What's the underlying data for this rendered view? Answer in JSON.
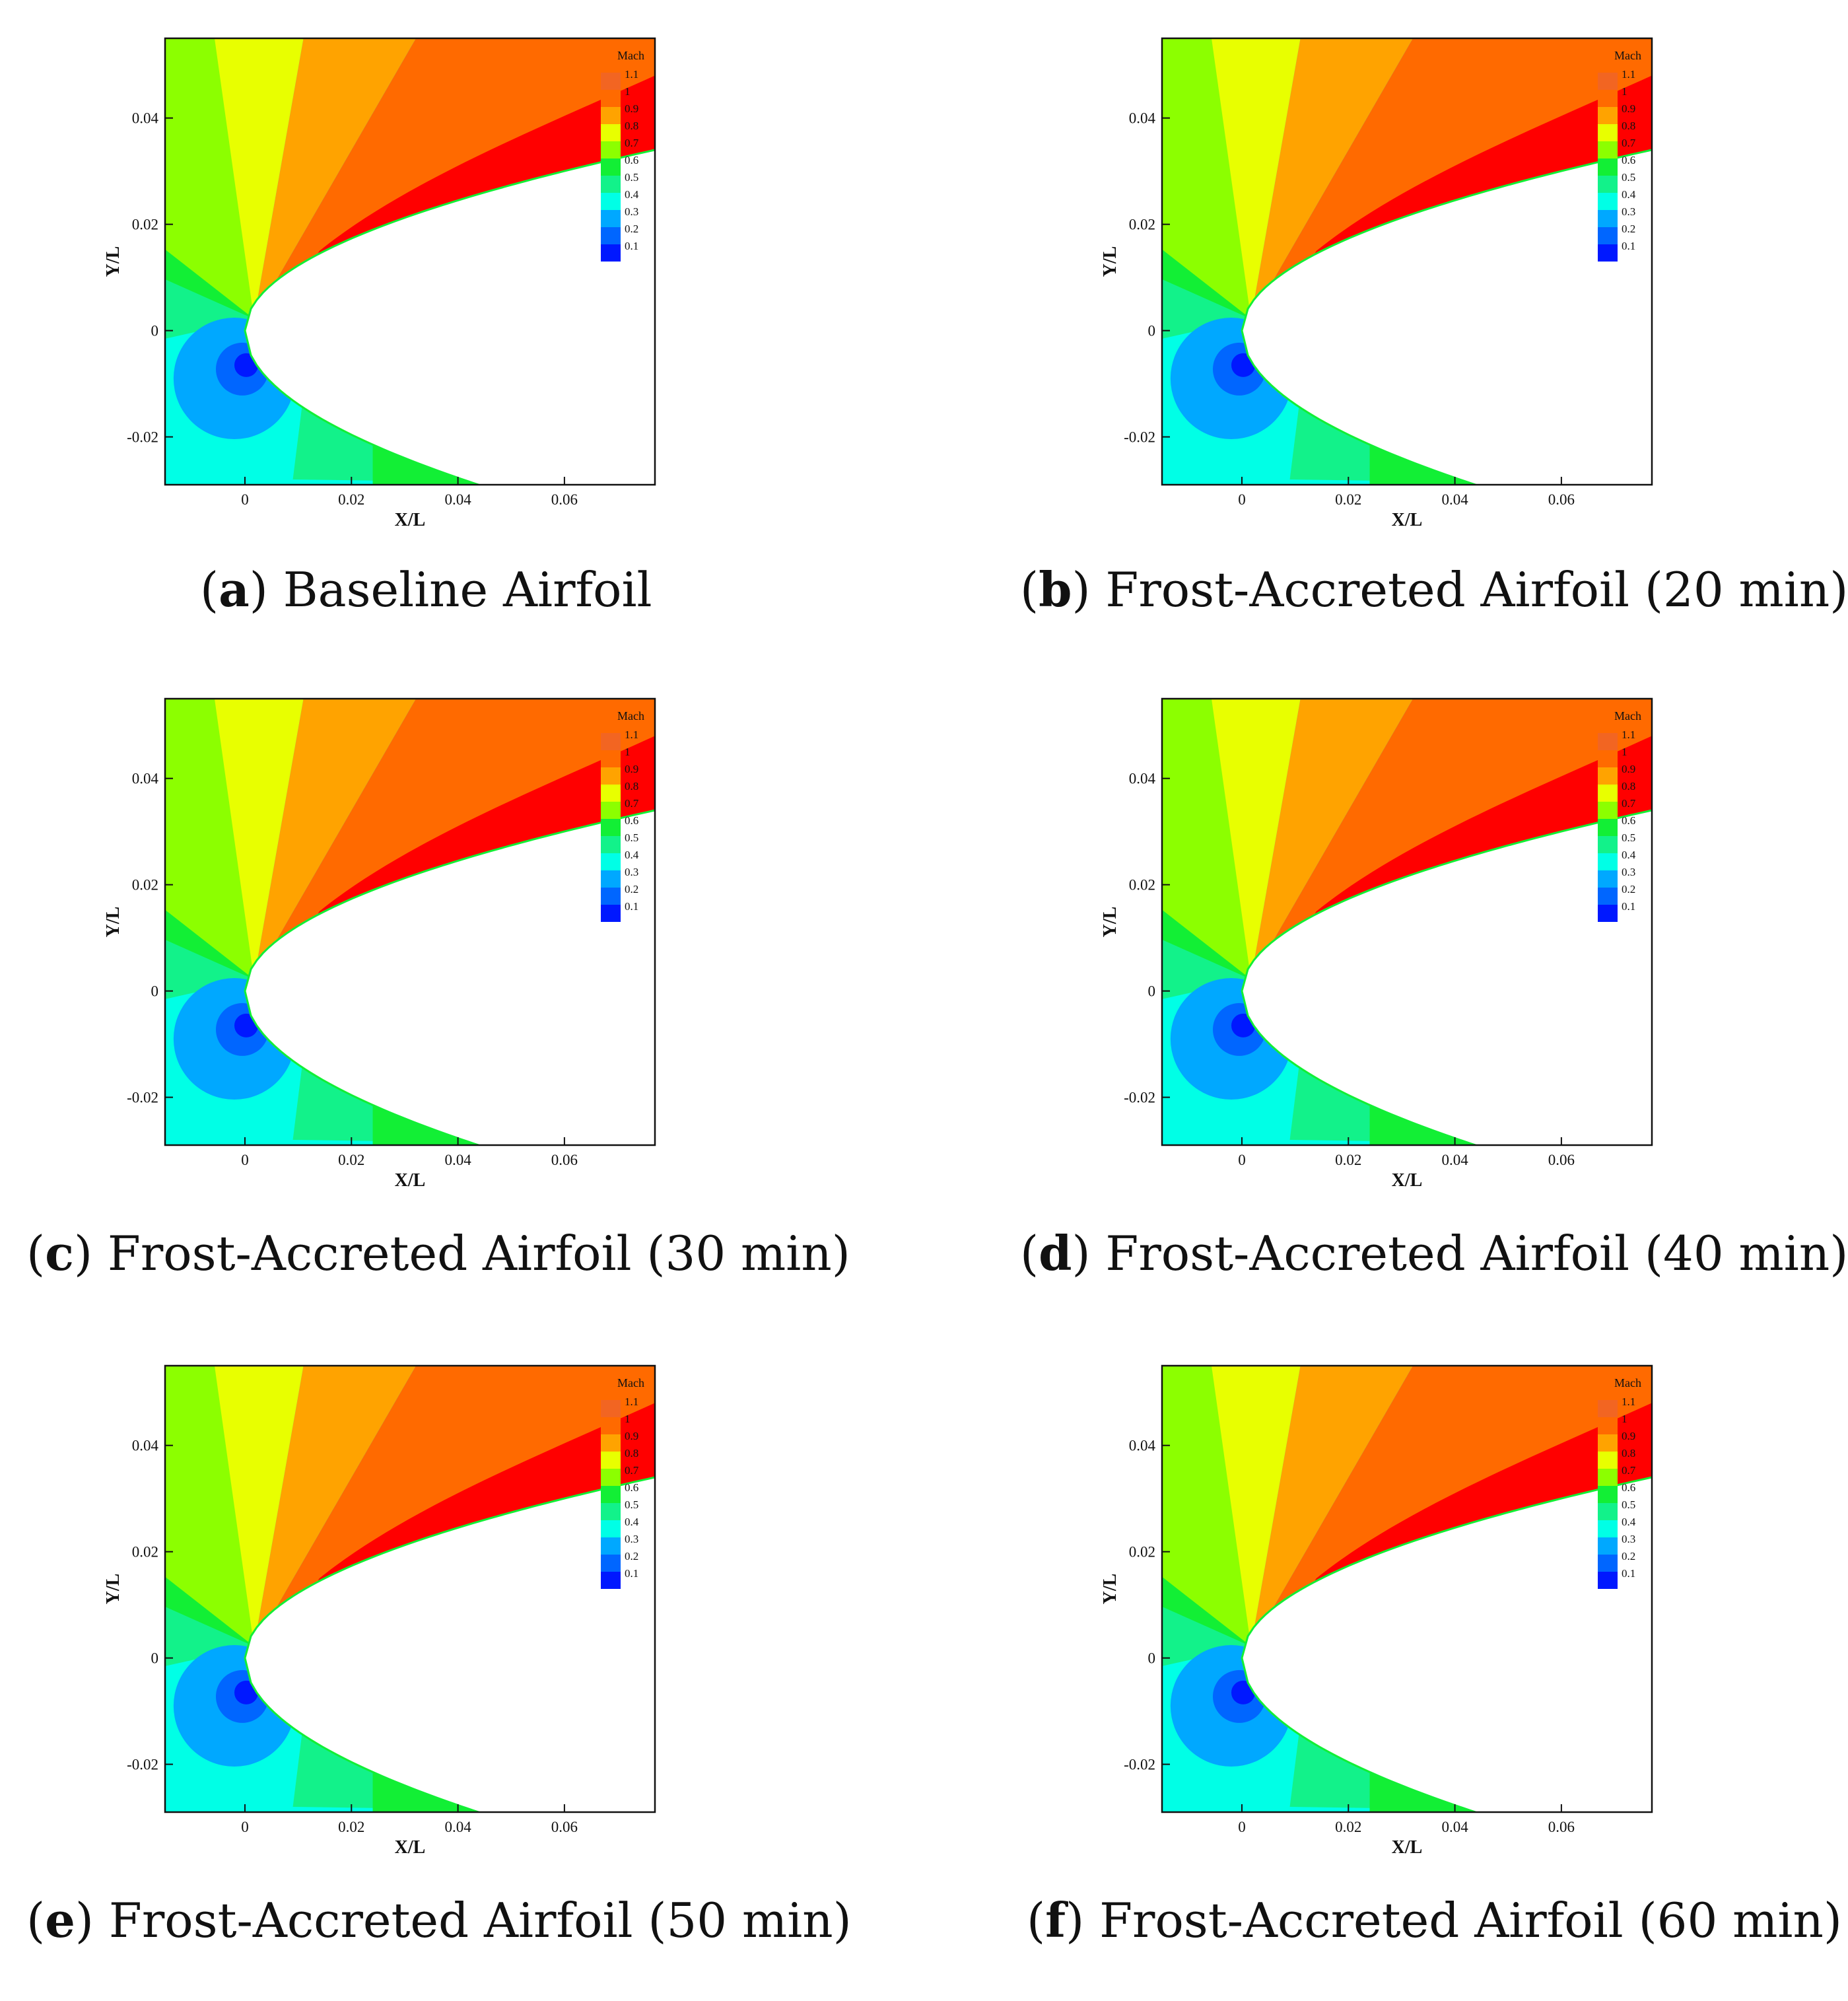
{
  "chart_data": [
    {
      "type": "heatmap",
      "panel_letter": "a",
      "caption_text": "Baseline Airfoil",
      "xlabel": "X/L",
      "ylabel": "Y/L",
      "xlim": [
        -0.015,
        0.077
      ],
      "ylim": [
        -0.029,
        0.055
      ],
      "xticks": [
        "0",
        "0.02",
        "0.04",
        "0.06"
      ],
      "yticks": [
        "-0.02",
        "0",
        "0.02",
        "0.04"
      ],
      "legend_title": "Mach",
      "legend_levels": [
        "1.1",
        "1",
        "0.9",
        "0.8",
        "0.7",
        "0.6",
        "0.5",
        "0.4",
        "0.3",
        "0.2",
        "0.1"
      ]
    },
    {
      "type": "heatmap",
      "panel_letter": "b",
      "caption_text": "Frost-Accreted Airfoil (20 min)",
      "xlabel": "X/L",
      "ylabel": "Y/L",
      "xlim": [
        -0.015,
        0.077
      ],
      "ylim": [
        -0.029,
        0.055
      ],
      "xticks": [
        "0",
        "0.02",
        "0.04",
        "0.06"
      ],
      "yticks": [
        "-0.02",
        "0",
        "0.02",
        "0.04"
      ],
      "legend_title": "Mach",
      "legend_levels": [
        "1.1",
        "1",
        "0.9",
        "0.8",
        "0.7",
        "0.6",
        "0.5",
        "0.4",
        "0.3",
        "0.2",
        "0.1"
      ]
    },
    {
      "type": "heatmap",
      "panel_letter": "c",
      "caption_text": "Frost-Accreted Airfoil (30 min)",
      "xlabel": "X/L",
      "ylabel": "Y/L",
      "xlim": [
        -0.015,
        0.077
      ],
      "ylim": [
        -0.029,
        0.055
      ],
      "xticks": [
        "0",
        "0.02",
        "0.04",
        "0.06"
      ],
      "yticks": [
        "-0.02",
        "0",
        "0.02",
        "0.04"
      ],
      "legend_title": "Mach",
      "legend_levels": [
        "1.1",
        "1",
        "0.9",
        "0.8",
        "0.7",
        "0.6",
        "0.5",
        "0.4",
        "0.3",
        "0.2",
        "0.1"
      ]
    },
    {
      "type": "heatmap",
      "panel_letter": "d",
      "caption_text": "Frost-Accreted Airfoil (40 min)",
      "xlabel": "X/L",
      "ylabel": "Y/L",
      "xlim": [
        -0.015,
        0.077
      ],
      "ylim": [
        -0.029,
        0.055
      ],
      "xticks": [
        "0",
        "0.02",
        "0.04",
        "0.06"
      ],
      "yticks": [
        "-0.02",
        "0",
        "0.02",
        "0.04"
      ],
      "legend_title": "Mach",
      "legend_levels": [
        "1.1",
        "1",
        "0.9",
        "0.8",
        "0.7",
        "0.6",
        "0.5",
        "0.4",
        "0.3",
        "0.2",
        "0.1"
      ]
    },
    {
      "type": "heatmap",
      "panel_letter": "e",
      "caption_text": "Frost-Accreted Airfoil (50 min)",
      "xlabel": "X/L",
      "ylabel": "Y/L",
      "xlim": [
        -0.015,
        0.077
      ],
      "ylim": [
        -0.029,
        0.055
      ],
      "xticks": [
        "0",
        "0.02",
        "0.04",
        "0.06"
      ],
      "yticks": [
        "-0.02",
        "0",
        "0.02",
        "0.04"
      ],
      "legend_title": "Mach",
      "legend_levels": [
        "1.1",
        "1",
        "0.9",
        "0.8",
        "0.7",
        "0.6",
        "0.5",
        "0.4",
        "0.3",
        "0.2",
        "0.1"
      ]
    },
    {
      "type": "heatmap",
      "panel_letter": "f",
      "caption_text": "Frost-Accreted Airfoil (60 min)",
      "xlabel": "X/L",
      "ylabel": "Y/L",
      "xlim": [
        -0.015,
        0.077
      ],
      "ylim": [
        -0.029,
        0.055
      ],
      "xticks": [
        "0",
        "0.02",
        "0.04",
        "0.06"
      ],
      "yticks": [
        "-0.02",
        "0",
        "0.02",
        "0.04"
      ],
      "legend_title": "Mach",
      "legend_levels": [
        "1.1",
        "1",
        "0.9",
        "0.8",
        "0.7",
        "0.6",
        "0.5",
        "0.4",
        "0.3",
        "0.2",
        "0.1"
      ]
    }
  ],
  "colors": {
    "mach_1.1": "#f26522",
    "mach_1": "#ff6a00",
    "mach_0.9": "#ffa300",
    "mach_0.8": "#e8ff00",
    "mach_0.7": "#8cff00",
    "mach_0.6": "#12ef35",
    "mach_0.5": "#12f28a",
    "mach_0.4": "#00ffe6",
    "mach_0.3": "#00a8ff",
    "mach_0.2": "#0066ff",
    "mach_0.1": "#0018ff",
    "supersonic_red": "#ff0000"
  }
}
